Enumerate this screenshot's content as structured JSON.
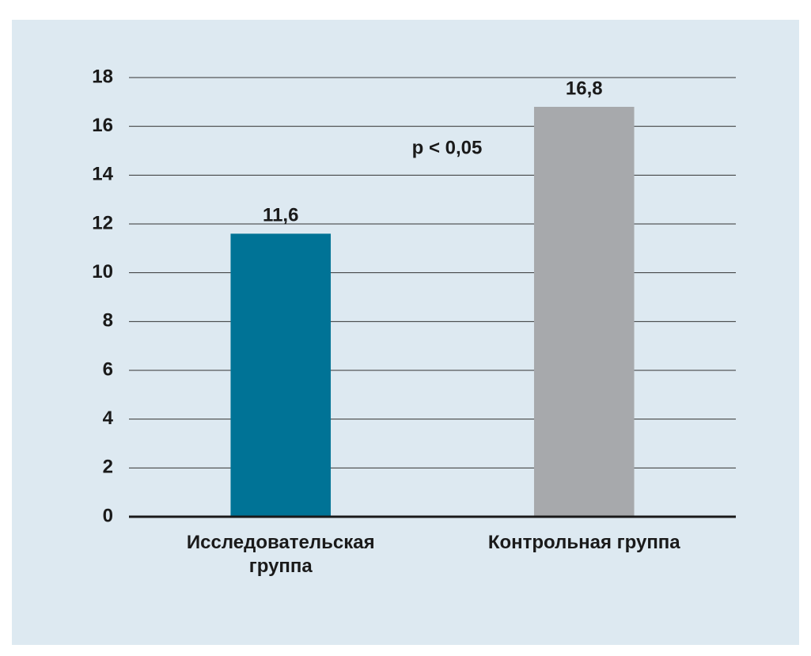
{
  "chart_data": {
    "type": "bar",
    "categories": [
      "Исследовательская группа",
      "Контрольная группа"
    ],
    "values": [
      11.6,
      16.8
    ],
    "value_labels": [
      "11,6",
      "16,8"
    ],
    "colors": [
      "#007396",
      "#a7a9ac"
    ],
    "annotation": "p < 0,05",
    "ylim": [
      0,
      18
    ],
    "yticks": [
      0,
      2,
      4,
      6,
      8,
      10,
      12,
      14,
      16,
      18
    ],
    "grid": true
  }
}
